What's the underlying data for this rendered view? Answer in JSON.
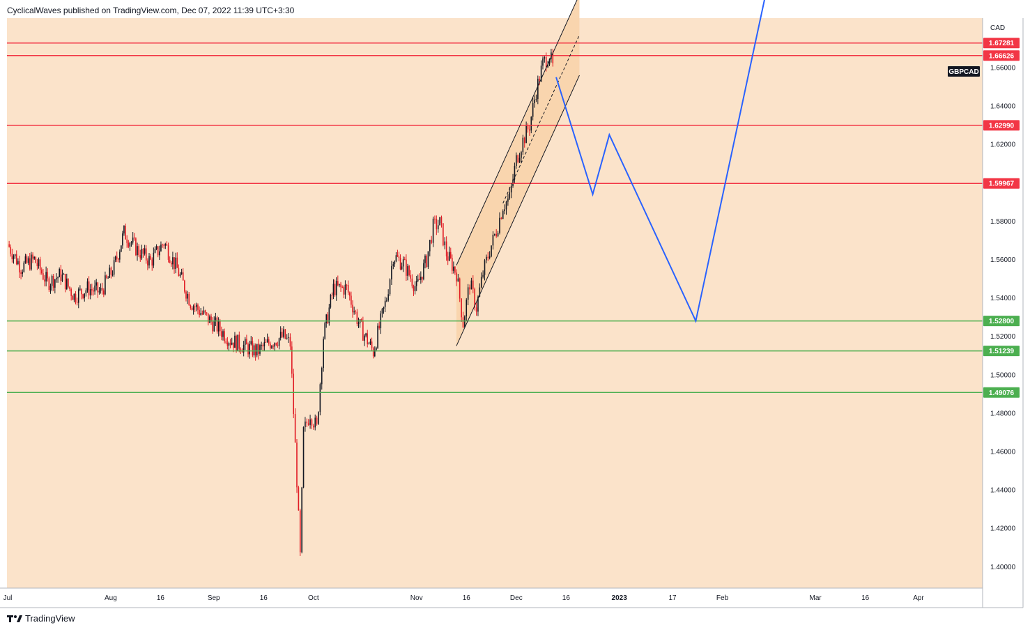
{
  "header": {
    "text": "CyclicalWaves published on TradingView.com, Dec 07, 2022 11:39 UTC+3:30"
  },
  "footer": {
    "brand": "TradingView"
  },
  "colors": {
    "background": "#fbe3ca",
    "channel_fill": "#f9d4ac",
    "resistance": "#f23645",
    "support": "#4caf50",
    "projection": "#2962ff",
    "candle_up": "#131722",
    "candle_down": "#e01b24"
  },
  "chart_data": {
    "type": "candlestick",
    "symbol": "GBPCAD",
    "currency": "CAD",
    "x_axis": {
      "ticks": [
        {
          "date": "2022-07-01",
          "label": "Jul"
        },
        {
          "date": "2022-08-01",
          "label": "Aug"
        },
        {
          "date": "2022-08-16",
          "label": "16"
        },
        {
          "date": "2022-09-01",
          "label": "Sep"
        },
        {
          "date": "2022-09-16",
          "label": "16"
        },
        {
          "date": "2022-10-01",
          "label": "Oct"
        },
        {
          "date": "2022-11-01",
          "label": "Nov"
        },
        {
          "date": "2022-11-16",
          "label": "16"
        },
        {
          "date": "2022-12-01",
          "label": "Dec"
        },
        {
          "date": "2022-12-16",
          "label": "16"
        },
        {
          "date": "2023-01-01",
          "label": "2023"
        },
        {
          "date": "2023-01-17",
          "label": "17"
        },
        {
          "date": "2023-02-01",
          "label": "Feb"
        },
        {
          "date": "2023-03-01",
          "label": "Mar"
        },
        {
          "date": "2023-03-16",
          "label": "16"
        },
        {
          "date": "2023-04-01",
          "label": "Apr"
        }
      ]
    },
    "y_axis": {
      "ticks": [
        "1.66000",
        "1.64000",
        "1.62000",
        "1.58000",
        "1.56000",
        "1.54000",
        "1.52000",
        "1.50000",
        "1.48000",
        "1.46000",
        "1.44000",
        "1.42000",
        "1.40000"
      ]
    },
    "resistance_levels": [
      "1.67281",
      "1.66626",
      "1.62990",
      "1.59967"
    ],
    "support_levels": [
      "1.52800",
      "1.51239",
      "1.49076"
    ],
    "price_path": [
      [
        "2022-07-01",
        1.568
      ],
      [
        "2022-07-05",
        1.556
      ],
      [
        "2022-07-09",
        1.56
      ],
      [
        "2022-07-13",
        1.548
      ],
      [
        "2022-07-17",
        1.552
      ],
      [
        "2022-07-21",
        1.541
      ],
      [
        "2022-07-25",
        1.545
      ],
      [
        "2022-07-29",
        1.543
      ],
      [
        "2022-08-02",
        1.556
      ],
      [
        "2022-08-05",
        1.574
      ],
      [
        "2022-08-09",
        1.565
      ],
      [
        "2022-08-13",
        1.559
      ],
      [
        "2022-08-17",
        1.569
      ],
      [
        "2022-08-21",
        1.555
      ],
      [
        "2022-08-25",
        1.538
      ],
      [
        "2022-08-29",
        1.531
      ],
      [
        "2022-09-02",
        1.525
      ],
      [
        "2022-09-06",
        1.518
      ],
      [
        "2022-09-10",
        1.515
      ],
      [
        "2022-09-14",
        1.512
      ],
      [
        "2022-09-18",
        1.517
      ],
      [
        "2022-09-22",
        1.52
      ],
      [
        "2022-09-24",
        1.516
      ],
      [
        "2022-09-26",
        1.445
      ],
      [
        "2022-09-27",
        1.405
      ],
      [
        "2022-09-28",
        1.47
      ],
      [
        "2022-09-30",
        1.48
      ],
      [
        "2022-10-02",
        1.472
      ],
      [
        "2022-10-04",
        1.52
      ],
      [
        "2022-10-07",
        1.545
      ],
      [
        "2022-10-11",
        1.545
      ],
      [
        "2022-10-15",
        1.525
      ],
      [
        "2022-10-19",
        1.512
      ],
      [
        "2022-10-23",
        1.54
      ],
      [
        "2022-10-25",
        1.562
      ],
      [
        "2022-10-28",
        1.558
      ],
      [
        "2022-11-01",
        1.545
      ],
      [
        "2022-11-04",
        1.56
      ],
      [
        "2022-11-06",
        1.577
      ],
      [
        "2022-11-08",
        1.579
      ],
      [
        "2022-11-10",
        1.563
      ],
      [
        "2022-11-13",
        1.553
      ],
      [
        "2022-11-15",
        1.527
      ],
      [
        "2022-11-17",
        1.548
      ],
      [
        "2022-11-19",
        1.535
      ],
      [
        "2022-11-21",
        1.553
      ],
      [
        "2022-11-23",
        1.565
      ],
      [
        "2022-11-25",
        1.575
      ],
      [
        "2022-11-27",
        1.588
      ],
      [
        "2022-11-29",
        1.592
      ],
      [
        "2022-12-01",
        1.612
      ],
      [
        "2022-12-03",
        1.622
      ],
      [
        "2022-12-05",
        1.63
      ],
      [
        "2022-12-07",
        1.648
      ],
      [
        "2022-12-09",
        1.662
      ],
      [
        "2022-12-11",
        1.667
      ],
      [
        "2022-12-12",
        1.66
      ]
    ],
    "projection_path": [
      [
        "2022-12-13",
        1.655
      ],
      [
        "2022-12-24",
        1.594
      ],
      [
        "2022-12-29",
        1.625
      ],
      [
        "2023-01-24",
        1.528
      ],
      [
        "2023-02-14",
        1.698
      ]
    ],
    "channel": {
      "lower": [
        [
          "2022-11-13",
          1.515
        ],
        [
          "2022-12-20",
          1.656
        ]
      ],
      "upper": [
        [
          "2022-11-13",
          1.557
        ],
        [
          "2022-12-20",
          1.698
        ]
      ]
    }
  }
}
